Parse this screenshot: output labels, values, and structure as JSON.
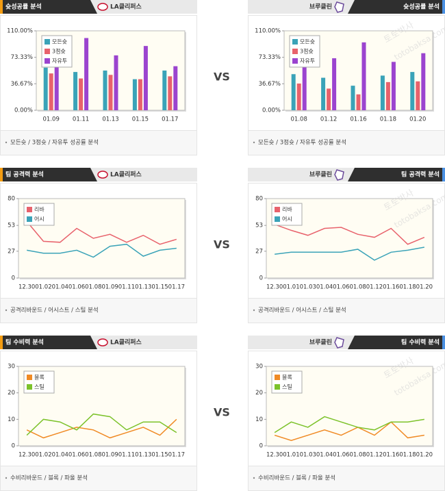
{
  "chart_data": [
    {
      "type": "bar",
      "title": "슛성공률 분석",
      "team": "LA클리퍼스",
      "caption": "모든슛 / 3점슛 / 자유투 성공률 분석",
      "categories": [
        "01.09",
        "01.11",
        "01.13",
        "01.15",
        "01.17"
      ],
      "series": [
        {
          "name": "모든슛",
          "color": "#3aa3b8",
          "values": [
            59,
            53,
            55,
            43,
            55
          ]
        },
        {
          "name": "3점슛",
          "color": "#e8626c",
          "values": [
            51,
            44,
            49,
            43,
            47
          ]
        },
        {
          "name": "자유투",
          "color": "#9b44cf",
          "values": [
            65,
            100,
            76,
            89,
            61
          ]
        }
      ],
      "ylim": [
        0,
        110
      ],
      "yticks": [
        {
          "value": 0,
          "label": "0.00%"
        },
        {
          "value": 36.67,
          "label": "36.67%"
        },
        {
          "value": 73.33,
          "label": "73.33%"
        },
        {
          "value": 110,
          "label": "110.00%"
        }
      ],
      "legend": "upper-left"
    },
    {
      "type": "bar",
      "title": "슛성공률 분석",
      "team": "브루클린",
      "caption": "모든슛 / 3점슛 / 자유투 성공률 분석",
      "categories": [
        "01.08",
        "01.12",
        "01.16",
        "01.18",
        "01.20"
      ],
      "series": [
        {
          "name": "모든슛",
          "color": "#3aa3b8",
          "values": [
            50,
            45,
            34,
            48,
            53
          ]
        },
        {
          "name": "3점슛",
          "color": "#e8626c",
          "values": [
            37,
            30,
            22,
            39,
            40
          ]
        },
        {
          "name": "자유투",
          "color": "#9b44cf",
          "values": [
            60,
            72,
            94,
            67,
            79
          ]
        }
      ],
      "ylim": [
        0,
        110
      ],
      "yticks": [
        {
          "value": 0,
          "label": "0.00%"
        },
        {
          "value": 36.67,
          "label": "36.67%"
        },
        {
          "value": 73.33,
          "label": "73.33%"
        },
        {
          "value": 110,
          "label": "110.00%"
        }
      ],
      "legend": "upper-left"
    },
    {
      "type": "line",
      "title": "팀 공격력 분석",
      "team": "LA클리퍼스",
      "caption": "공격리바운드 / 어시스트 / 스틸 분석",
      "categories": [
        "12.30",
        "01.02",
        "01.04",
        "01.06",
        "01.08",
        "01.09",
        "01.11",
        "01.13",
        "01.15",
        "01.17"
      ],
      "series": [
        {
          "name": "리바",
          "color": "#e8626c",
          "values": [
            57,
            37,
            36,
            50,
            40,
            44,
            36,
            43,
            34,
            39
          ]
        },
        {
          "name": "어시",
          "color": "#3aa3b8",
          "values": [
            28,
            25,
            25,
            28,
            21,
            32,
            34,
            22,
            28,
            30
          ]
        }
      ],
      "ylim": [
        0,
        80
      ],
      "yticks": [
        0,
        27,
        53,
        80
      ],
      "legend": "upper-left"
    },
    {
      "type": "line",
      "title": "팀 공격력 분석",
      "team": "브루클린",
      "caption": "공격리바운드 / 어시스트 / 스틸 분석",
      "categories": [
        "12.30",
        "01.01",
        "01.03",
        "01.04",
        "01.06",
        "01.08",
        "01.12",
        "01.16",
        "01.18",
        "01.20"
      ],
      "series": [
        {
          "name": "리바",
          "color": "#e8626c",
          "values": [
            54,
            48,
            43,
            50,
            51,
            44,
            41,
            50,
            34,
            41
          ]
        },
        {
          "name": "어시",
          "color": "#3aa3b8",
          "values": [
            24,
            26,
            26,
            26,
            26,
            29,
            18,
            26,
            28,
            31
          ]
        }
      ],
      "ylim": [
        0,
        80
      ],
      "yticks": [
        0,
        27,
        53,
        80
      ],
      "legend": "upper-left"
    },
    {
      "type": "line",
      "title": "팀 수비력 분석",
      "team": "LA클리퍼스",
      "caption": "수비리바운드 / 블록 / 파울 분석",
      "categories": [
        "12.30",
        "01.02",
        "01.04",
        "01.06",
        "01.08",
        "01.09",
        "01.11",
        "01.13",
        "01.15",
        "01.17"
      ],
      "series": [
        {
          "name": "블록",
          "color": "#f08a24",
          "values": [
            6,
            3,
            5,
            7,
            6,
            3,
            5,
            7,
            4,
            10
          ]
        },
        {
          "name": "스틸",
          "color": "#7cc22a",
          "values": [
            4,
            10,
            9,
            6,
            12,
            11,
            6,
            9,
            9,
            5
          ]
        }
      ],
      "ylim": [
        0,
        30
      ],
      "yticks": [
        0,
        10,
        20,
        30
      ],
      "legend": "upper-left"
    },
    {
      "type": "line",
      "title": "팀 수비력 분석",
      "team": "브루클린",
      "caption": "수비리바운드 / 블록 / 파울 분석",
      "categories": [
        "12.30",
        "01.01",
        "01.03",
        "01.04",
        "01.06",
        "01.08",
        "01.12",
        "01.16",
        "01.18",
        "01.20"
      ],
      "series": [
        {
          "name": "블록",
          "color": "#f08a24",
          "values": [
            4,
            2,
            4,
            6,
            4,
            7,
            4,
            9,
            3,
            4
          ]
        },
        {
          "name": "스틸",
          "color": "#7cc22a",
          "values": [
            5,
            9,
            7,
            11,
            9,
            7,
            6,
            9,
            9,
            10
          ]
        }
      ],
      "ylim": [
        0,
        30
      ],
      "yticks": [
        0,
        10,
        20,
        30
      ],
      "legend": "upper-left"
    }
  ],
  "vs": [
    "VS",
    "VS",
    "VS"
  ],
  "watermark": [
    "토토박사",
    "totobaksa.com"
  ]
}
